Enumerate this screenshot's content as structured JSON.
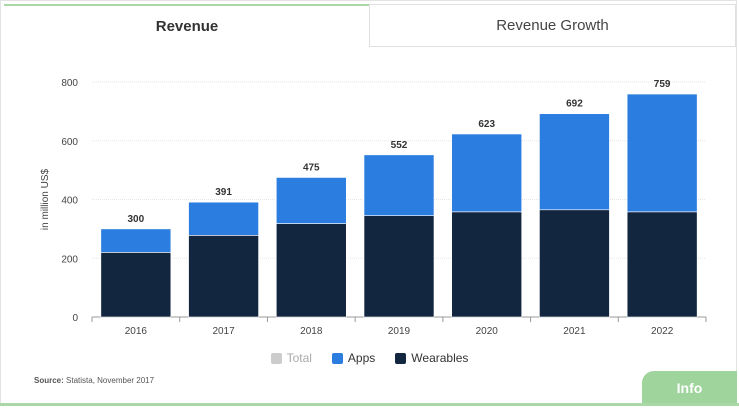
{
  "tabs": [
    {
      "label": "Revenue",
      "active": true
    },
    {
      "label": "Revenue Growth",
      "active": false
    }
  ],
  "legend": {
    "total": "Total",
    "apps": "Apps",
    "wearables": "Wearables"
  },
  "source": {
    "label": "Source:",
    "text": "Statista, November 2017"
  },
  "info_button": "Info",
  "colors": {
    "apps": "#2b7de0",
    "wearables": "#12263f",
    "total": "#cccccc",
    "accent": "#a9d7a6"
  },
  "chart_data": {
    "type": "bar",
    "stacked": true,
    "categories": [
      "2016",
      "2017",
      "2018",
      "2019",
      "2020",
      "2021",
      "2022"
    ],
    "series": [
      {
        "name": "Wearables",
        "values": [
          220,
          278,
          318,
          345,
          358,
          365,
          358
        ]
      },
      {
        "name": "Apps",
        "values": [
          80,
          113,
          157,
          207,
          265,
          327,
          401
        ]
      }
    ],
    "totals": [
      300,
      391,
      475,
      552,
      623,
      692,
      759
    ],
    "ylabel": "in million US$",
    "ylim": [
      0,
      800
    ],
    "yticks": [
      0,
      200,
      400,
      600,
      800
    ],
    "grid": true,
    "legend_position": "bottom"
  }
}
